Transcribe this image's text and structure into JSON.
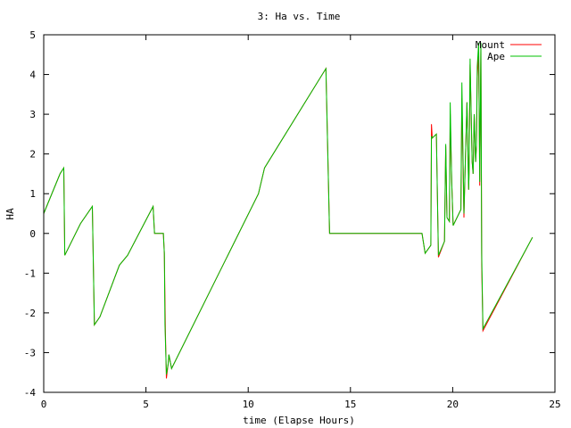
{
  "chart_data": {
    "type": "line",
    "title": "3: Ha vs. Time",
    "xlabel": "time (Elapse Hours)",
    "ylabel": "HA",
    "xlim": [
      0,
      25
    ],
    "ylim": [
      -4,
      5
    ],
    "xticks": [
      0,
      5,
      10,
      15,
      20,
      25
    ],
    "yticks": [
      -4,
      -3,
      -2,
      -1,
      0,
      1,
      2,
      3,
      4,
      5
    ],
    "grid": false,
    "legend_position": "top-right",
    "series": [
      {
        "name": "Mount",
        "color": "#ff0000",
        "points": [
          [
            0.0,
            0.5
          ],
          [
            0.8,
            1.5
          ],
          [
            0.98,
            1.65
          ],
          [
            1.03,
            -0.55
          ],
          [
            1.8,
            0.25
          ],
          [
            2.38,
            0.68
          ],
          [
            2.48,
            -2.3
          ],
          [
            2.75,
            -2.1
          ],
          [
            3.7,
            -0.8
          ],
          [
            4.1,
            -0.55
          ],
          [
            5.35,
            0.68
          ],
          [
            5.42,
            0.0
          ],
          [
            5.85,
            0.0
          ],
          [
            5.9,
            -0.5
          ],
          [
            5.95,
            -2.5
          ],
          [
            6.0,
            -3.65
          ],
          [
            6.08,
            -3.3
          ],
          [
            6.12,
            -3.05
          ],
          [
            6.25,
            -3.4
          ],
          [
            10.5,
            1.0
          ],
          [
            10.8,
            1.65
          ],
          [
            13.8,
            4.15
          ],
          [
            13.98,
            0.0
          ],
          [
            18.5,
            0.0
          ],
          [
            18.65,
            -0.5
          ],
          [
            18.93,
            -0.3
          ],
          [
            18.96,
            2.75
          ],
          [
            19.0,
            2.4
          ],
          [
            19.2,
            2.5
          ],
          [
            19.3,
            -0.6
          ],
          [
            19.6,
            -0.2
          ],
          [
            19.66,
            2.2
          ],
          [
            19.72,
            0.4
          ],
          [
            19.84,
            0.3
          ],
          [
            19.88,
            3.0
          ],
          [
            19.95,
            1.3
          ],
          [
            20.02,
            0.2
          ],
          [
            20.4,
            0.6
          ],
          [
            20.45,
            3.4
          ],
          [
            20.55,
            0.4
          ],
          [
            20.6,
            1.5
          ],
          [
            20.7,
            3.3
          ],
          [
            20.78,
            1.1
          ],
          [
            20.8,
            1.5
          ],
          [
            20.85,
            4.25
          ],
          [
            20.95,
            1.8
          ],
          [
            21.0,
            1.5
          ],
          [
            21.05,
            3.0
          ],
          [
            21.12,
            1.8
          ],
          [
            21.16,
            2.2
          ],
          [
            21.2,
            3.9
          ],
          [
            21.27,
            4.6
          ],
          [
            21.32,
            1.2
          ],
          [
            21.38,
            4.75
          ],
          [
            21.42,
            -0.8
          ],
          [
            21.48,
            -2.45
          ],
          [
            23.9,
            -0.1
          ]
        ]
      },
      {
        "name": "Ape",
        "color": "#00c000",
        "points": [
          [
            0.0,
            0.5
          ],
          [
            0.8,
            1.5
          ],
          [
            0.98,
            1.65
          ],
          [
            1.03,
            -0.55
          ],
          [
            1.8,
            0.25
          ],
          [
            2.38,
            0.68
          ],
          [
            2.48,
            -2.3
          ],
          [
            2.75,
            -2.1
          ],
          [
            3.7,
            -0.8
          ],
          [
            4.1,
            -0.55
          ],
          [
            5.35,
            0.68
          ],
          [
            5.42,
            0.0
          ],
          [
            5.85,
            0.0
          ],
          [
            5.9,
            -0.5
          ],
          [
            5.93,
            -2.3
          ],
          [
            6.0,
            -3.55
          ],
          [
            6.08,
            -3.3
          ],
          [
            6.12,
            -3.05
          ],
          [
            6.25,
            -3.4
          ],
          [
            10.5,
            1.0
          ],
          [
            10.8,
            1.65
          ],
          [
            13.8,
            4.15
          ],
          [
            13.98,
            0.0
          ],
          [
            18.5,
            0.0
          ],
          [
            18.65,
            -0.5
          ],
          [
            18.93,
            -0.3
          ],
          [
            18.96,
            2.45
          ],
          [
            19.0,
            2.4
          ],
          [
            19.2,
            2.5
          ],
          [
            19.3,
            -0.55
          ],
          [
            19.6,
            -0.2
          ],
          [
            19.66,
            2.25
          ],
          [
            19.72,
            0.4
          ],
          [
            19.84,
            0.3
          ],
          [
            19.88,
            3.3
          ],
          [
            19.95,
            1.3
          ],
          [
            20.02,
            0.2
          ],
          [
            20.4,
            0.6
          ],
          [
            20.45,
            3.8
          ],
          [
            20.55,
            0.5
          ],
          [
            20.6,
            1.5
          ],
          [
            20.7,
            3.3
          ],
          [
            20.78,
            1.1
          ],
          [
            20.8,
            1.5
          ],
          [
            20.85,
            4.4
          ],
          [
            20.95,
            1.8
          ],
          [
            21.0,
            1.5
          ],
          [
            21.05,
            3.0
          ],
          [
            21.12,
            1.8
          ],
          [
            21.16,
            2.2
          ],
          [
            21.2,
            4.2
          ],
          [
            21.27,
            4.8
          ],
          [
            21.32,
            1.3
          ],
          [
            21.38,
            4.8
          ],
          [
            21.42,
            -0.5
          ],
          [
            21.48,
            -2.4
          ],
          [
            23.9,
            -0.1
          ]
        ]
      }
    ]
  }
}
